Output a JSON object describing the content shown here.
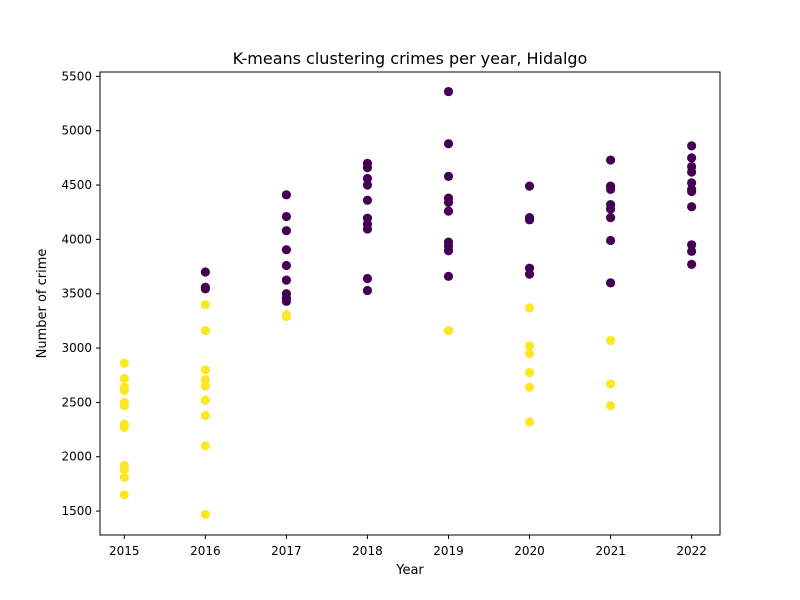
{
  "chart_data": {
    "type": "scatter",
    "title": "K-means clustering crimes per year, Hidalgo",
    "xlabel": "Year",
    "ylabel": "Number of crime",
    "xlim": [
      2014.7,
      2022.35
    ],
    "ylim": [
      1280,
      5540
    ],
    "xticks": [
      2015,
      2016,
      2017,
      2018,
      2019,
      2020,
      2021,
      2022
    ],
    "yticks": [
      1500,
      2000,
      2500,
      3000,
      3500,
      4000,
      4500,
      5000,
      5500
    ],
    "grid": false,
    "colors": {
      "cluster_high": "#440154",
      "cluster_low": "#fde725"
    },
    "series": [
      {
        "cluster": "high",
        "color": "#440154",
        "points": [
          [
            2016,
            3700
          ],
          [
            2016,
            3560
          ],
          [
            2016,
            3545
          ],
          [
            2017,
            4410
          ],
          [
            2017,
            4210
          ],
          [
            2017,
            4080
          ],
          [
            2017,
            3905
          ],
          [
            2017,
            3760
          ],
          [
            2017,
            3625
          ],
          [
            2017,
            3500
          ],
          [
            2017,
            3460
          ],
          [
            2017,
            3430
          ],
          [
            2018,
            4700
          ],
          [
            2018,
            4660
          ],
          [
            2018,
            4560
          ],
          [
            2018,
            4500
          ],
          [
            2018,
            4360
          ],
          [
            2018,
            4195
          ],
          [
            2018,
            4140
          ],
          [
            2018,
            4095
          ],
          [
            2018,
            3640
          ],
          [
            2018,
            3530
          ],
          [
            2019,
            5360
          ],
          [
            2019,
            4880
          ],
          [
            2019,
            4580
          ],
          [
            2019,
            4380
          ],
          [
            2019,
            4340
          ],
          [
            2019,
            4260
          ],
          [
            2019,
            3975
          ],
          [
            2019,
            3935
          ],
          [
            2019,
            3895
          ],
          [
            2019,
            3660
          ],
          [
            2020,
            4490
          ],
          [
            2020,
            4200
          ],
          [
            2020,
            4180
          ],
          [
            2020,
            3735
          ],
          [
            2020,
            3680
          ],
          [
            2021,
            4730
          ],
          [
            2021,
            4490
          ],
          [
            2021,
            4460
          ],
          [
            2021,
            4320
          ],
          [
            2021,
            4280
          ],
          [
            2021,
            4200
          ],
          [
            2021,
            3990
          ],
          [
            2021,
            3600
          ],
          [
            2022,
            4860
          ],
          [
            2022,
            4750
          ],
          [
            2022,
            4670
          ],
          [
            2022,
            4620
          ],
          [
            2022,
            4520
          ],
          [
            2022,
            4460
          ],
          [
            2022,
            4440
          ],
          [
            2022,
            4300
          ],
          [
            2022,
            3950
          ],
          [
            2022,
            3890
          ],
          [
            2022,
            3770
          ]
        ]
      },
      {
        "cluster": "low",
        "color": "#fde725",
        "points": [
          [
            2015,
            2860
          ],
          [
            2015,
            2720
          ],
          [
            2015,
            2640
          ],
          [
            2015,
            2610
          ],
          [
            2015,
            2500
          ],
          [
            2015,
            2470
          ],
          [
            2015,
            2300
          ],
          [
            2015,
            2270
          ],
          [
            2015,
            1920
          ],
          [
            2015,
            1880
          ],
          [
            2015,
            1810
          ],
          [
            2015,
            1650
          ],
          [
            2016,
            3400
          ],
          [
            2016,
            3160
          ],
          [
            2016,
            2800
          ],
          [
            2016,
            2710
          ],
          [
            2016,
            2650
          ],
          [
            2016,
            2520
          ],
          [
            2016,
            2380
          ],
          [
            2016,
            2100
          ],
          [
            2016,
            1470
          ],
          [
            2017,
            3305
          ],
          [
            2017,
            3290
          ],
          [
            2019,
            3160
          ],
          [
            2020,
            3370
          ],
          [
            2020,
            3020
          ],
          [
            2020,
            2950
          ],
          [
            2020,
            2775
          ],
          [
            2020,
            2640
          ],
          [
            2020,
            2320
          ],
          [
            2021,
            3070
          ],
          [
            2021,
            2670
          ],
          [
            2021,
            2470
          ]
        ]
      }
    ]
  }
}
